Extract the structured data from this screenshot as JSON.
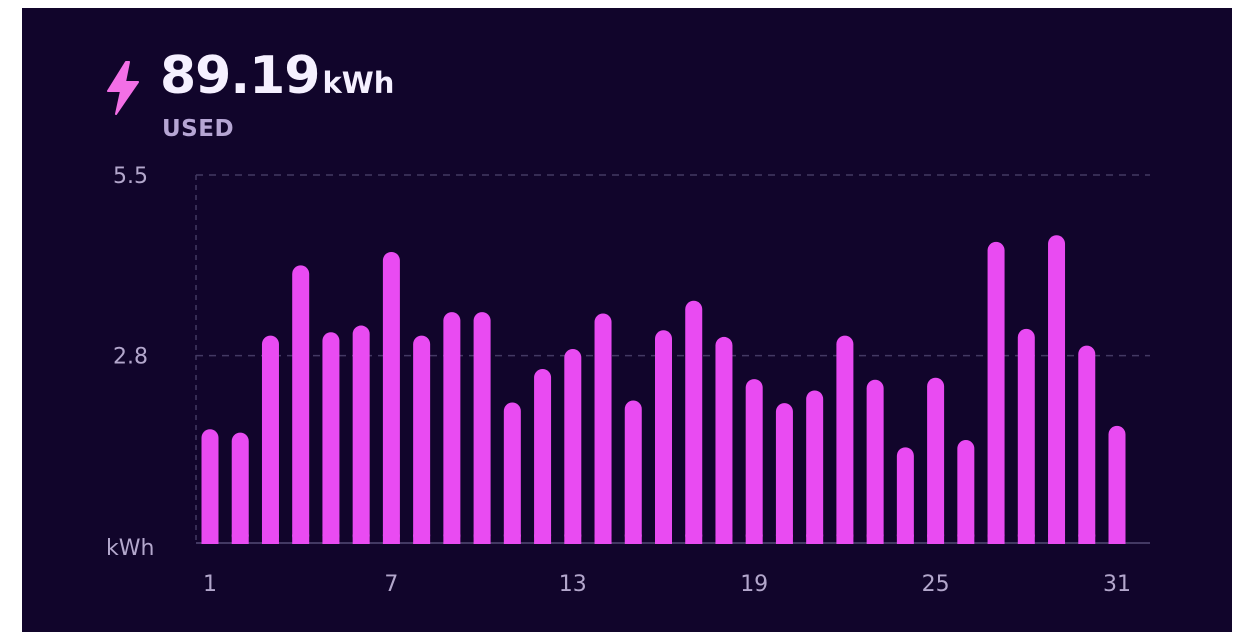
{
  "summary": {
    "value": "89.19",
    "unit": "kWh",
    "label": "USED",
    "icon": "lightning-bolt-icon"
  },
  "colors": {
    "background": "#11052b",
    "bar": "#e94bf2",
    "icon": "#f36fe6",
    "grid": "#433963",
    "text": "#b3a7cc"
  },
  "chart_data": {
    "type": "bar",
    "ylabel": "kWh",
    "ylim": [
      0,
      5.5
    ],
    "yticks": [
      "5.5",
      "2.8"
    ],
    "grid": "dashed horizontal",
    "x": [
      1,
      2,
      3,
      4,
      5,
      6,
      7,
      8,
      9,
      10,
      11,
      12,
      13,
      14,
      15,
      16,
      17,
      18,
      19,
      20,
      21,
      22,
      23,
      24,
      25,
      26,
      27,
      28,
      29,
      30,
      31
    ],
    "xtick_labels": [
      "1",
      "7",
      "13",
      "19",
      "25",
      "31"
    ],
    "values": [
      1.7,
      1.65,
      3.1,
      4.15,
      3.15,
      3.25,
      4.35,
      3.1,
      3.45,
      3.45,
      2.1,
      2.6,
      2.9,
      3.43,
      2.13,
      3.18,
      3.62,
      3.08,
      2.45,
      2.09,
      2.28,
      3.1,
      2.44,
      1.43,
      2.47,
      1.54,
      4.5,
      3.2,
      4.6,
      2.95,
      1.75
    ]
  }
}
